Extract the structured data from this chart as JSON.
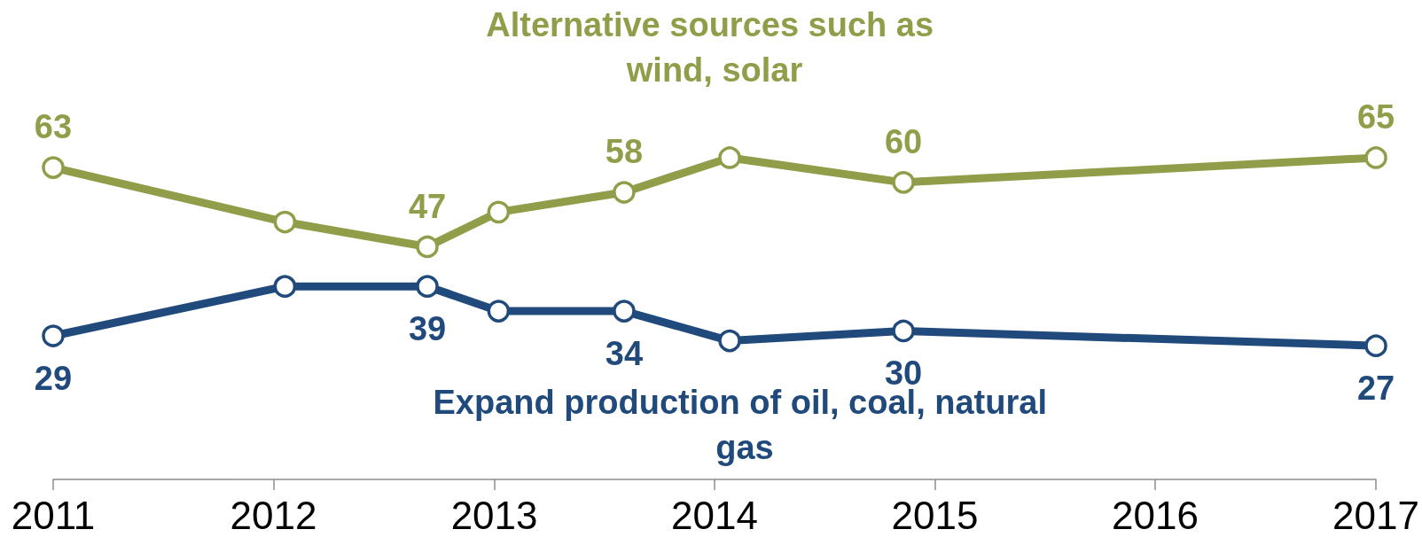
{
  "chart_data": {
    "type": "line",
    "x": [
      "2011-01-01",
      "2012-01-20",
      "2012-09-12",
      "2013-01-08",
      "2013-08-04",
      "2014-01-26",
      "2014-11-10",
      "2017-01-01"
    ],
    "series": [
      {
        "name": "Alternative sources such as wind, solar",
        "color": "#919d48",
        "values": [
          63,
          52,
          47,
          54,
          58,
          65,
          60,
          65
        ],
        "value_labels": [
          "63",
          null,
          "47",
          null,
          "58",
          null,
          "60",
          "65"
        ]
      },
      {
        "name": "Expand production of oil, coal, natural gas",
        "color": "#214a7c",
        "values": [
          29,
          39,
          39,
          34,
          34,
          28,
          30,
          27
        ],
        "value_labels": [
          "29",
          null,
          "39",
          null,
          "34",
          null,
          "30",
          "27"
        ]
      }
    ],
    "xlim": [
      "2011-01-01",
      "2017-01-01"
    ],
    "xticks": [
      "2011",
      "2012",
      "2013",
      "2014",
      "2015",
      "2016",
      "2017"
    ],
    "tick_labels": "x",
    "grid": false,
    "legend": false,
    "marker": "circle",
    "line_style": "solid"
  }
}
